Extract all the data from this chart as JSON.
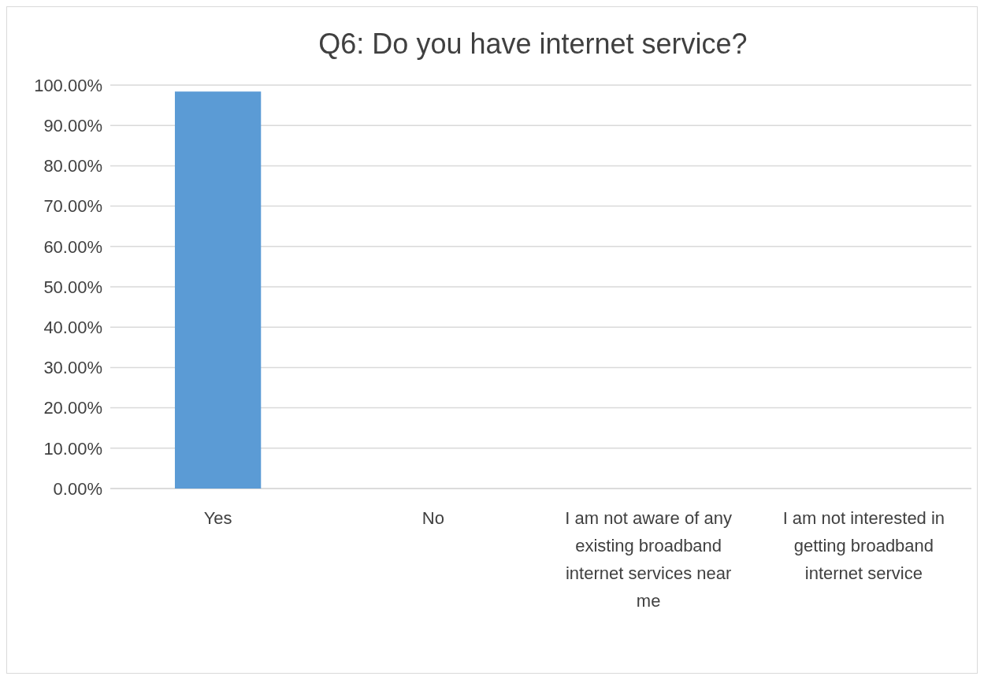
{
  "chart_data": {
    "type": "bar",
    "title": "Q6: Do you have internet service?",
    "categories": [
      "Yes",
      "No",
      "I am not aware of any existing broadband internet services near me",
      "I am not interested in getting broadband internet service"
    ],
    "values": [
      98.4,
      0,
      0,
      0
    ],
    "color": "#5b9bd5",
    "ylim": [
      0,
      100
    ],
    "yticks": [
      {
        "value": 0,
        "label": "0.00%"
      },
      {
        "value": 10,
        "label": "10.00%"
      },
      {
        "value": 20,
        "label": "20.00%"
      },
      {
        "value": 30,
        "label": "30.00%"
      },
      {
        "value": 40,
        "label": "40.00%"
      },
      {
        "value": 50,
        "label": "50.00%"
      },
      {
        "value": 60,
        "label": "60.00%"
      },
      {
        "value": 70,
        "label": "70.00%"
      },
      {
        "value": 80,
        "label": "80.00%"
      },
      {
        "value": 90,
        "label": "90.00%"
      },
      {
        "value": 100,
        "label": "100.00%"
      }
    ],
    "grid": "y"
  }
}
